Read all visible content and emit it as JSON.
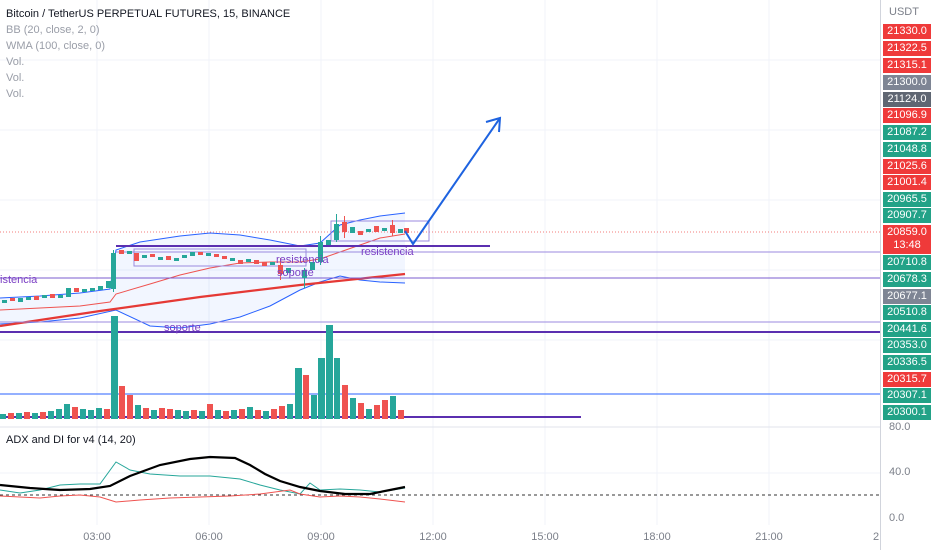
{
  "legend": {
    "title": "Bitcoin / TetherUS PERPETUAL FUTURES, 15, BINANCE",
    "indicators": [
      "BB (20, close, 2, 0)",
      "WMA (100, close, 0)",
      "Vol.",
      "Vol.",
      "Vol."
    ]
  },
  "adx_legend": "ADX and DI for v4 (14, 20)",
  "price_scale": {
    "unit": "USDT",
    "labels": [
      {
        "value": "21330.0",
        "kind": "red"
      },
      {
        "value": "21322.5",
        "kind": "red"
      },
      {
        "value": "21315.1",
        "kind": "red"
      },
      {
        "value": "21300.0",
        "kind": "gray"
      },
      {
        "value": "21124.0",
        "kind": "gray"
      },
      {
        "value": "21096.9",
        "kind": "red"
      },
      {
        "value": "21087.2",
        "kind": "green"
      },
      {
        "value": "21048.8",
        "kind": "green"
      },
      {
        "value": "21025.6",
        "kind": "red"
      },
      {
        "value": "21001.4",
        "kind": "red"
      },
      {
        "value": "20965.5",
        "kind": "green"
      },
      {
        "value": "20907.7",
        "kind": "green"
      },
      {
        "value": "20859.0",
        "kind": "current",
        "countdown": "13:48"
      },
      {
        "value": "20710.8",
        "kind": "green"
      },
      {
        "value": "20678.3",
        "kind": "green"
      },
      {
        "value": "20677.1",
        "kind": "gray"
      },
      {
        "value": "20510.8",
        "kind": "green"
      },
      {
        "value": "20441.6",
        "kind": "green"
      },
      {
        "value": "20353.0",
        "kind": "green"
      },
      {
        "value": "20336.5",
        "kind": "green"
      },
      {
        "value": "20315.7",
        "kind": "red"
      },
      {
        "value": "20307.1",
        "kind": "green"
      },
      {
        "value": "20300.1",
        "kind": "green"
      }
    ],
    "adx_ticks": [
      "80.0",
      "40.0",
      "0.0"
    ]
  },
  "time_axis": [
    "03:00",
    "06:00",
    "09:00",
    "12:00",
    "15:00",
    "18:00",
    "21:00",
    "2"
  ],
  "drawings": {
    "label_resistencia_left": "istencia",
    "label_resistencia_mid": "resistencia",
    "label_soporte_mid": "soporte",
    "label_resistencia_right": "resistencia",
    "label_soporte_bottom": "soporte"
  },
  "colors": {
    "up": "#26a69a",
    "down": "#ef5350",
    "bb": "#2962ff",
    "wma": "#e53935",
    "drawing": "#5b2fb0",
    "arrow": "#1e63e0",
    "adx": "#000000",
    "di_plus": "#26a69a",
    "di_minus": "#ef5350"
  }
}
